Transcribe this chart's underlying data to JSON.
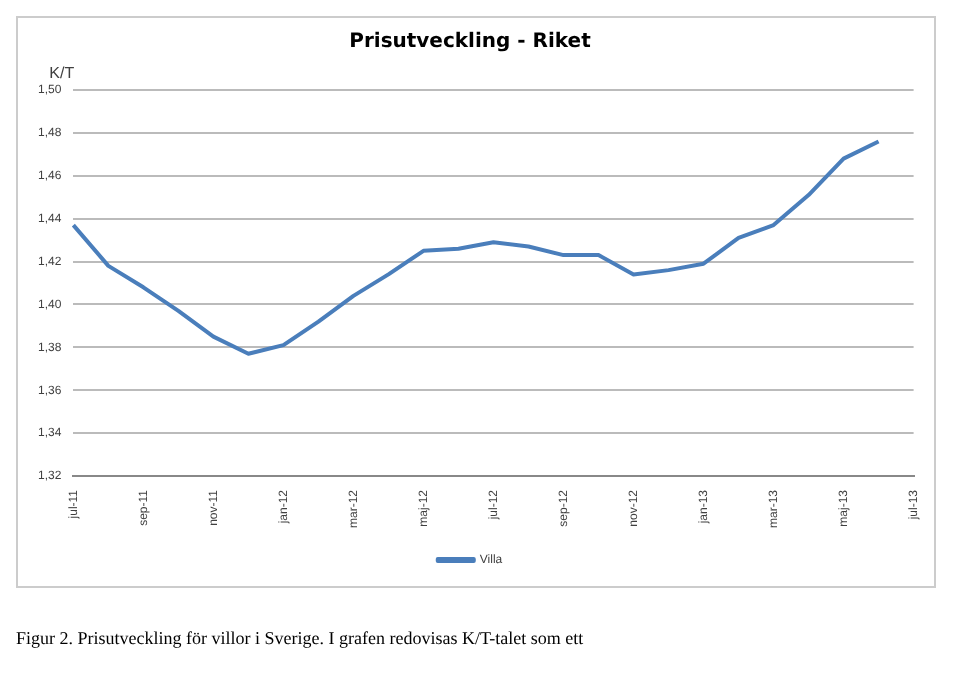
{
  "chart_data": {
    "type": "line",
    "title": "Prisutveckling - Riket",
    "ylabel": "K/T",
    "categories": [
      "jul-11",
      null,
      "sep-11",
      null,
      "nov-11",
      null,
      "jan-12",
      null,
      "mar-12",
      null,
      "maj-12",
      null,
      "jul-12",
      null,
      "sep-12",
      null,
      "nov-12",
      null,
      "jan-13",
      null,
      "mar-13",
      null,
      "maj-13",
      null,
      "jul-13"
    ],
    "series": [
      {
        "name": "Villa",
        "color": "#4a7ebb",
        "values": [
          1.437,
          1.418,
          1.408,
          1.397,
          1.385,
          1.377,
          1.381,
          1.392,
          1.404,
          1.414,
          1.425,
          1.426,
          1.429,
          1.427,
          1.423,
          1.423,
          1.414,
          1.416,
          1.419,
          1.431,
          1.437,
          1.451,
          1.468,
          1.476,
          null
        ]
      }
    ],
    "ylim": [
      1.32,
      1.5
    ],
    "yticks": [
      {
        "value": 1.32,
        "label": "1,32"
      },
      {
        "value": 1.34,
        "label": "1,34"
      },
      {
        "value": 1.36,
        "label": "1,36"
      },
      {
        "value": 1.38,
        "label": "1,38"
      },
      {
        "value": 1.4,
        "label": "1,40"
      },
      {
        "value": 1.42,
        "label": "1,42"
      },
      {
        "value": 1.44,
        "label": "1,44"
      },
      {
        "value": 1.46,
        "label": "1,46"
      },
      {
        "value": 1.48,
        "label": "1,48"
      },
      {
        "value": 1.5,
        "label": "1,50"
      }
    ],
    "grid": "y",
    "legend": "bottom",
    "marker": "none",
    "line_style": "solid",
    "annotations": [
      "Figur 2. Prisutveckling för villor i Sverige. I grafen redovisas K/T-talet som ett"
    ]
  }
}
